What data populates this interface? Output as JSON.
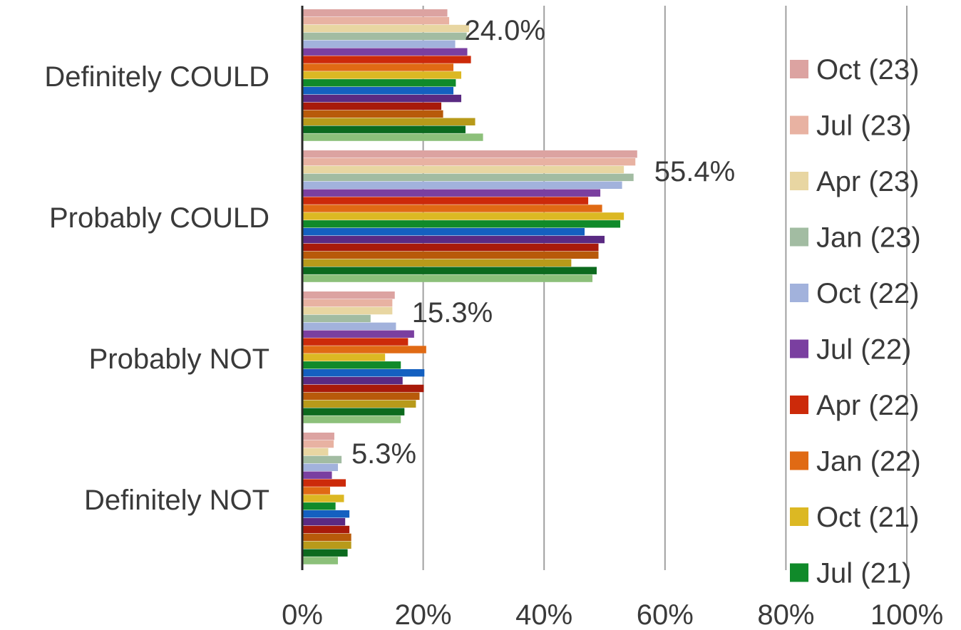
{
  "chart_data": {
    "type": "bar",
    "orientation": "horizontal",
    "title": "",
    "xlabel": "",
    "ylabel": "",
    "xlim": [
      0,
      100
    ],
    "grid": true,
    "legend_position": "right",
    "categories": [
      "Definitely COULD",
      "Probably COULD",
      "Probably NOT",
      "Definitely NOT"
    ],
    "x_tick_labels": [
      "0%",
      "20%",
      "40%",
      "60%",
      "80%",
      "100%"
    ],
    "x_ticks": [
      0,
      20,
      40,
      60,
      80,
      100
    ],
    "data_labels": [
      "24.0%",
      "55.4%",
      "15.3%",
      "5.3%"
    ],
    "series": [
      {
        "name": "Oct (23)",
        "color": "#dca3a1",
        "values": [
          24.0,
          55.4,
          15.3,
          5.3
        ]
      },
      {
        "name": "Jul (23)",
        "color": "#e8b2a2",
        "values": [
          24.3,
          55.1,
          14.9,
          5.2
        ]
      },
      {
        "name": "Apr (23)",
        "color": "#e8d6a2",
        "values": [
          27.6,
          53.2,
          14.9,
          4.3
        ]
      },
      {
        "name": "Jan (23)",
        "color": "#a2bca2",
        "values": [
          27.2,
          54.8,
          11.3,
          6.5
        ]
      },
      {
        "name": "Oct (22)",
        "color": "#a2b2dc",
        "values": [
          25.3,
          52.9,
          15.5,
          5.9
        ]
      },
      {
        "name": "Jul (22)",
        "color": "#7a3fa0",
        "values": [
          27.3,
          49.3,
          18.5,
          4.9
        ]
      },
      {
        "name": "Apr (22)",
        "color": "#cc2a0a",
        "values": [
          27.9,
          47.3,
          17.5,
          7.2
        ]
      },
      {
        "name": "Jan (22)",
        "color": "#e06a14",
        "values": [
          25.0,
          49.6,
          20.5,
          4.6
        ]
      },
      {
        "name": "Oct (21)",
        "color": "#dcb823",
        "values": [
          26.3,
          53.2,
          13.7,
          6.9
        ]
      },
      {
        "name": "Jul (21)",
        "color": "#108a2a",
        "values": [
          25.4,
          52.6,
          16.3,
          5.5
        ]
      },
      {
        "name": "",
        "color": "#1460c0",
        "values": [
          25.0,
          46.7,
          20.2,
          7.8
        ]
      },
      {
        "name": "",
        "color": "#5a2a82",
        "values": [
          26.3,
          50.0,
          16.6,
          7.1
        ]
      },
      {
        "name": "",
        "color": "#a81a0a",
        "values": [
          23.0,
          49.0,
          20.1,
          7.8
        ]
      },
      {
        "name": "",
        "color": "#b85a0a",
        "values": [
          23.3,
          49.0,
          19.4,
          8.1
        ]
      },
      {
        "name": "",
        "color": "#b89a1a",
        "values": [
          28.6,
          44.5,
          18.8,
          8.1
        ]
      },
      {
        "name": "",
        "color": "#0c6a1e",
        "values": [
          27.0,
          48.7,
          16.9,
          7.5
        ]
      },
      {
        "name": "",
        "color": "#8cc07a",
        "values": [
          29.9,
          48.0,
          16.3,
          5.9
        ]
      }
    ]
  }
}
